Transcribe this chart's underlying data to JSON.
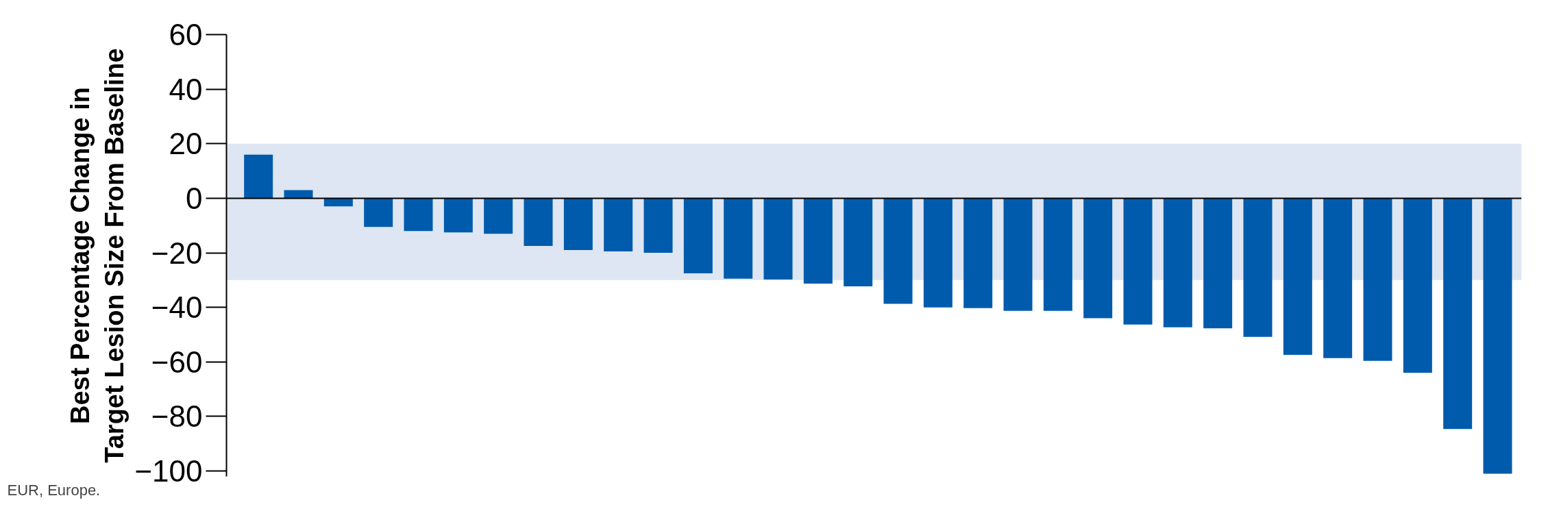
{
  "chart_data": {
    "type": "bar",
    "ylabel": "Best Percentage Change in\nTarget Lesion Size From Baseline",
    "categories": [
      null,
      null,
      null,
      null,
      null,
      null,
      null,
      null,
      null,
      null,
      null,
      null,
      null,
      null,
      null,
      null,
      null,
      null,
      null,
      null,
      null,
      null,
      null,
      null,
      null,
      null,
      null,
      null,
      null,
      null,
      null,
      null
    ],
    "values": [
      16,
      3,
      -3,
      -10.5,
      -12,
      -12.5,
      -13,
      -17.5,
      -19,
      -19.5,
      -20,
      -27.5,
      -29.5,
      -29.8,
      -31.3,
      -32.3,
      -38.7,
      -40,
      -40.3,
      -41.3,
      -41.3,
      -44,
      -46.3,
      -47.3,
      -47.7,
      -50.8,
      -57.4,
      -58.6,
      -59.6,
      -64,
      -84.6,
      -101
    ],
    "color": "#005bac",
    "ylim": [
      -102,
      60
    ],
    "yticks": [
      60,
      40,
      20,
      0,
      {
        "value": -20,
        "label": "−20"
      },
      {
        "value": -40,
        "label": "−40"
      },
      {
        "value": -60,
        "label": "−60"
      },
      {
        "value": -80,
        "label": "−80"
      },
      {
        "value": -100,
        "label": "−100"
      }
    ],
    "bands": [
      {
        "axis": "y",
        "from": -30,
        "to": 20,
        "color": "#dde6f2"
      }
    ],
    "ref_lines": [
      {
        "axis": "y",
        "value": 0,
        "color": "#000000"
      }
    ],
    "annotations": [
      "EUR, Europe."
    ],
    "grid": false
  }
}
